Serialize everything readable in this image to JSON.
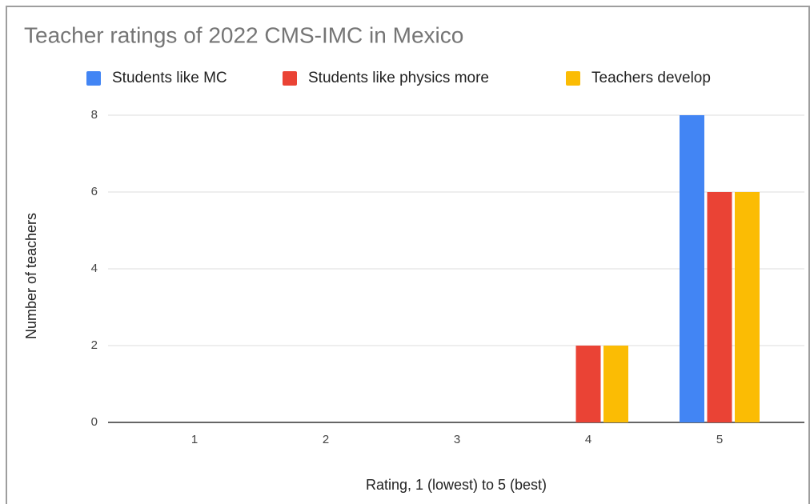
{
  "chart_data": {
    "type": "bar",
    "title": "Teacher ratings of 2022 CMS-IMC in Mexico",
    "x_label": "Rating, 1 (lowest) to 5 (best)",
    "y_label": "Number of teachers",
    "categories": [
      "1",
      "2",
      "3",
      "4",
      "5"
    ],
    "series": [
      {
        "name": "Students like MC",
        "color": "#4285f4",
        "values": [
          0,
          0,
          0,
          0,
          8
        ]
      },
      {
        "name": "Students like physics more",
        "color": "#ea4335",
        "values": [
          0,
          0,
          0,
          2,
          6
        ]
      },
      {
        "name": "Teachers develop",
        "color": "#fbbc04",
        "values": [
          0,
          0,
          0,
          2,
          6
        ]
      }
    ],
    "ylim": [
      0,
      8
    ],
    "yticks": [
      0,
      2,
      4,
      6,
      8
    ],
    "grid": true,
    "legend": "top"
  }
}
